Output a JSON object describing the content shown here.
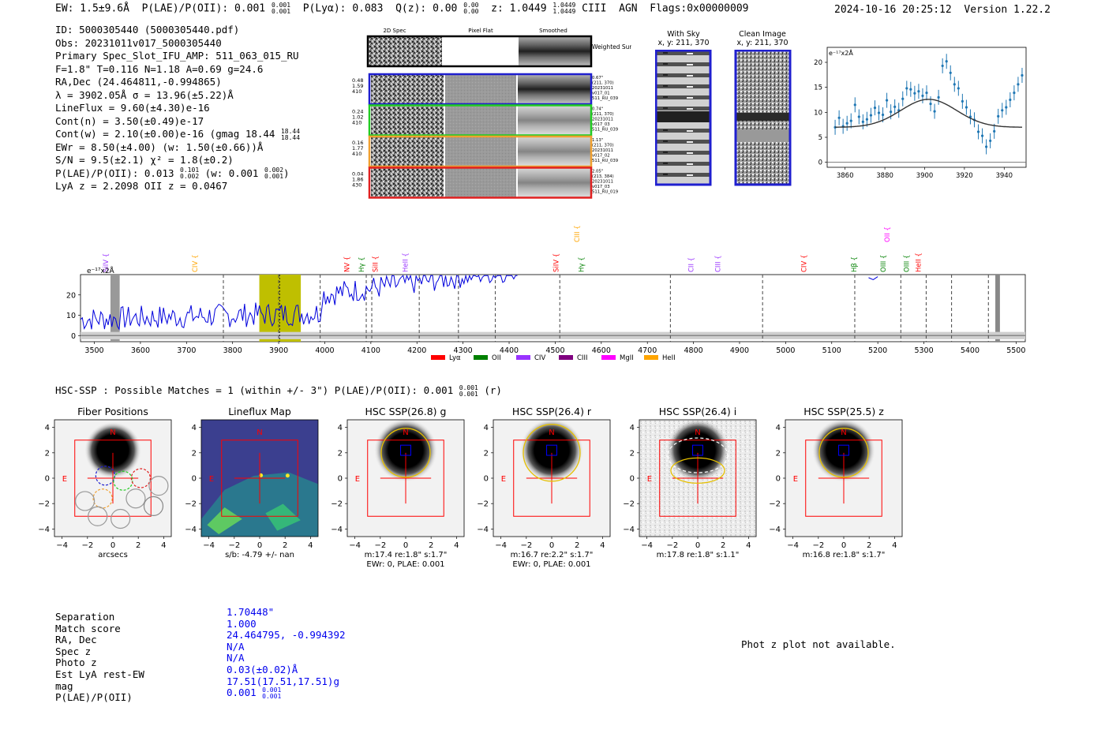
{
  "header": {
    "ew": "EW: 1.5±9.6Å",
    "plae": "P(LAE)/P(OII): 0.001",
    "plae_hi": "0.001",
    "plae_lo": "0.001",
    "plya": "P(Lyα): 0.083",
    "qz": "Q(z): 0.00",
    "qz_hi": "0.00",
    "qz_lo": "0.00",
    "z": "z: 1.0449",
    "z_hi": "1.0449",
    "z_lo": "1.0449",
    "line": "CIII",
    "agn": "AGN",
    "flags": "Flags:0x00000009",
    "timestamp": "2024-10-16 20:25:12",
    "version": "Version 1.22.2"
  },
  "info": {
    "id": "ID: 5000305440 (5000305440.pdf)",
    "obs": "Obs: 20231011v017_5000305440",
    "primary": "Primary Spec_Slot_IFU_AMP: 511_063_015_RU",
    "fiber": "F=1.8\"  T=0.116  N=1.18  A=0.69  g=24.6",
    "radec": "RA,Dec (24.464811,-0.994865)",
    "lambda": "λ = 3902.05Å  σ = 13.96(±5.22)Å",
    "lineflux": "LineFlux = 9.60(±4.30)e-16",
    "contn": "Cont(n) = 3.50(±0.49)e-17",
    "contw": "Cont(w) = 2.10(±0.00)e-16 (gmag 18.44",
    "contw_hi": "18.44",
    "contw_lo": "18.44",
    "ewr": "EWr = 8.50(±4.00) (w: 1.50(±0.66))Å",
    "sn": "S/N = 9.5(±2.1)  χ² = 1.8(±0.2)",
    "plae": "P(LAE)/P(OII): 0.013",
    "plae_hi": "0.101",
    "plae_lo": "0.002",
    "plae_w": "(w: 0.001",
    "plae_w_hi": "0.002",
    "plae_w_lo": "0.001",
    "lyaz": "LyA z = 2.2098   OII z = 0.0467"
  },
  "cutouts": {
    "col1": "2D Spec",
    "col2": "Pixel Flat",
    "col3": "Smoothed",
    "weighted": "Weighted Sum",
    "rows": [
      {
        "nums": [
          "0.48",
          "1.59",
          "410"
        ],
        "meta": [
          "0.67\"",
          "(211, 370)",
          "20231011",
          "v017_01",
          "511_RU_039"
        ],
        "color": "#1f1fcf"
      },
      {
        "nums": [
          "0.24",
          "1.02",
          "410"
        ],
        "meta": [
          "0.74\"",
          "(211, 370)",
          "20231011",
          "v017_03",
          "511_RU_039"
        ],
        "color": "#22cc22"
      },
      {
        "nums": [
          "0.16",
          "1.77",
          "410"
        ],
        "meta": [
          "1.13\"",
          "(211, 370)",
          "20231011",
          "v017_02",
          "511_RU_039"
        ],
        "color": "#f0a030"
      },
      {
        "nums": [
          "0.04",
          "1.86",
          "430"
        ],
        "meta": [
          "2.05\"",
          "(213, 384)",
          "20231011",
          "v017_03",
          "511_RU_019"
        ],
        "color": "#e02020"
      }
    ],
    "with_sky": "With Sky",
    "with_sky_xy": "x, y: 211, 370",
    "clean": "Clean Image",
    "clean_xy": "x, y: 211, 370"
  },
  "fit_plot": {
    "unit": "e⁻¹⁷x2Å"
  },
  "spectrum_labels": {
    "unit": "e⁻¹⁷x2Å",
    "legend": [
      "Lyα",
      "OII",
      "CIV",
      "CIII",
      "MgII",
      "HeII"
    ],
    "legend_colors": [
      "#ff0000",
      "#008000",
      "#9933ff",
      "#800080",
      "#ff00ff",
      "#ffa500"
    ]
  },
  "chart_data": [
    {
      "type": "scatter",
      "title": "Line fit",
      "xlabel": "",
      "ylabel": "e⁻¹⁷x2Å",
      "xlim": [
        3851,
        3951
      ],
      "ylim": [
        -1,
        23
      ],
      "xticks": [
        3860,
        3880,
        3900,
        3920,
        3940
      ],
      "yticks": [
        0,
        5,
        10,
        15,
        20
      ],
      "points": [
        [
          3855,
          7.0
        ],
        [
          3857,
          8.9
        ],
        [
          3859,
          7.2
        ],
        [
          3861,
          7.8
        ],
        [
          3863,
          8.3
        ],
        [
          3865,
          11.5
        ],
        [
          3867,
          9.1
        ],
        [
          3869,
          8.1
        ],
        [
          3871,
          8.6
        ],
        [
          3873,
          9.4
        ],
        [
          3875,
          10.9
        ],
        [
          3877,
          9.9
        ],
        [
          3879,
          9.5
        ],
        [
          3881,
          12.4
        ],
        [
          3883,
          10.1
        ],
        [
          3885,
          11.1
        ],
        [
          3887,
          10.4
        ],
        [
          3889,
          12.7
        ],
        [
          3891,
          14.8
        ],
        [
          3893,
          14.6
        ],
        [
          3895,
          13.8
        ],
        [
          3897,
          14.2
        ],
        [
          3899,
          13.3
        ],
        [
          3901,
          13.9
        ],
        [
          3903,
          11.7
        ],
        [
          3905,
          10.2
        ],
        [
          3907,
          13.0
        ],
        [
          3909,
          19.3
        ],
        [
          3911,
          20.2
        ],
        [
          3913,
          17.9
        ],
        [
          3915,
          15.6
        ],
        [
          3917,
          14.8
        ],
        [
          3919,
          12.2
        ],
        [
          3921,
          11.0
        ],
        [
          3923,
          9.1
        ],
        [
          3925,
          8.5
        ],
        [
          3927,
          6.1
        ],
        [
          3929,
          5.3
        ],
        [
          3931,
          3.1
        ],
        [
          3933,
          4.3
        ],
        [
          3935,
          6.2
        ],
        [
          3937,
          9.2
        ],
        [
          3939,
          10.4
        ],
        [
          3941,
          11.0
        ],
        [
          3943,
          12.5
        ],
        [
          3945,
          13.9
        ],
        [
          3947,
          15.6
        ],
        [
          3949,
          17.4
        ]
      ],
      "fit": {
        "continuum": 7.0,
        "amplitude": 5.6,
        "center": 3902.05,
        "sigma": 13.96
      }
    },
    {
      "type": "line",
      "title": "Full spectrum",
      "xlabel": "",
      "ylabel": "e⁻¹⁷x2Å",
      "xlim": [
        3470,
        5520
      ],
      "ylim": [
        -3,
        30
      ],
      "xticks": [
        3500,
        3600,
        3700,
        3800,
        3900,
        4000,
        4100,
        4200,
        4300,
        4400,
        4500,
        4600,
        4700,
        4800,
        4900,
        5000,
        5100,
        5200,
        5300,
        5400,
        5500
      ],
      "yticks": [
        0,
        10,
        20
      ],
      "highlight": [
        3858,
        3948
      ],
      "center_line": 3902,
      "dashed_lines": [
        3780,
        3900,
        3990,
        4090,
        4102,
        4205,
        4290,
        4370,
        4510,
        4750,
        4950,
        5150,
        5250,
        5305,
        5360,
        5440
      ],
      "line_markers": [
        {
          "label": "SiIV",
          "x": 3525,
          "color": "#9933ff",
          "level": 0
        },
        {
          "label": "CIV",
          "x": 3718,
          "color": "#ffa500",
          "level": 0
        },
        {
          "label": "NV",
          "x": 4048,
          "color": "#ff0000",
          "level": 0
        },
        {
          "label": "Hγ",
          "x": 4080,
          "color": "#008000",
          "level": 0
        },
        {
          "label": "SiII",
          "x": 4110,
          "color": "#ff0000",
          "level": 0
        },
        {
          "label": "HeII",
          "x": 4175,
          "color": "#9933ff",
          "level": 0
        },
        {
          "label": "SiIV",
          "x": 4502,
          "color": "#ff0000",
          "level": 0
        },
        {
          "label": "CIII",
          "x": 4547,
          "color": "#ffa500",
          "level": 1
        },
        {
          "label": "Hγ",
          "x": 4557,
          "color": "#008000",
          "level": 0
        },
        {
          "label": "CII",
          "x": 4795,
          "color": "#9933ff",
          "level": 0
        },
        {
          "label": "CIII",
          "x": 4853,
          "color": "#9933ff",
          "level": 0
        },
        {
          "label": "CIV",
          "x": 5040,
          "color": "#ff0000",
          "level": 0
        },
        {
          "label": "Hβ",
          "x": 5148,
          "color": "#008000",
          "level": 0
        },
        {
          "label": "OIII",
          "x": 5212,
          "color": "#008000",
          "level": 0
        },
        {
          "label": "OII",
          "x": 5220,
          "color": "#ff00ff",
          "level": 1
        },
        {
          "label": "OIII",
          "x": 5262,
          "color": "#008000",
          "level": 0
        },
        {
          "label": "HeII",
          "x": 5288,
          "color": "#ff0000",
          "level": 0
        }
      ]
    }
  ],
  "hsc": {
    "summary": "HSC-SSP : Possible Matches = 1 (within +/- 3\")  P(LAE)/P(OII): 0.001",
    "summary_hi": "0.001",
    "summary_lo": "0.001",
    "summary_band": "(r)",
    "panels": [
      {
        "title": "Fiber Positions",
        "cap1": "arcsecs",
        "cap2": ""
      },
      {
        "title": "Lineflux Map",
        "cap1": "s/b: -4.79 +/- nan",
        "cap2": ""
      },
      {
        "title": "HSC SSP(26.8) g",
        "cap1": "m:17.4  re:1.8\"  s:1.7\"",
        "cap2": "EWr: 0, PLAE: 0.001"
      },
      {
        "title": "HSC SSP(26.4) r",
        "cap1": "m:16.7  re:2.2\"  s:1.7\"",
        "cap2": "EWr: 0, PLAE: 0.001"
      },
      {
        "title": "HSC SSP(26.4) i",
        "cap1": "m:17.8  re:1.8\"  s:1.1\"",
        "cap2": ""
      },
      {
        "title": "HSC SSP(25.5) z",
        "cap1": "m:16.8  re:1.8\"  s:1.7\"",
        "cap2": ""
      }
    ],
    "axis_ticks": [
      "−4",
      "−2",
      "0",
      "2",
      "4"
    ],
    "compass_n": "N",
    "compass_e": "E"
  },
  "match": {
    "labels": [
      "Separation",
      "Match score",
      "RA, Dec",
      "Spec z",
      "Photo z",
      "Est LyA rest-EW",
      "mag",
      "P(LAE)/P(OII)"
    ],
    "separation": "1.70448\"",
    "score": "1.000",
    "radec": "24.464795, -0.994392",
    "specz": "N/A",
    "photoz": "N/A",
    "restew": "0.03(±0.02)Å",
    "mag": "17.51(17.51,17.51)g",
    "plae": "0.001",
    "plae_hi": "0.001",
    "plae_lo": "0.001",
    "photz_msg": "Phot z plot not available."
  }
}
